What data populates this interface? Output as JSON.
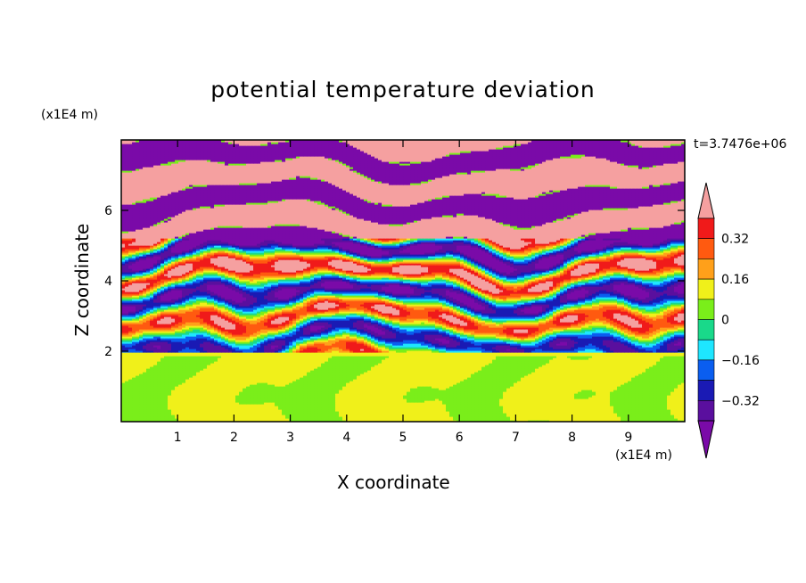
{
  "chart_data": {
    "type": "heatmap",
    "title": "potential temperature deviation",
    "xlabel": "X coordinate",
    "ylabel": "Z coordinate",
    "x_unit": "(x1E4 m)",
    "y_unit": "(x1E4 m)",
    "time_label": "t=3.7476e+06",
    "x_ticks": [
      "1",
      "2",
      "3",
      "4",
      "5",
      "6",
      "7",
      "8",
      "9"
    ],
    "y_ticks": [
      "2",
      "4",
      "6"
    ],
    "xlim": [
      0,
      10
    ],
    "ylim": [
      0,
      8
    ],
    "colorbar": {
      "tick_labels": [
        "0.32",
        "0.16",
        "0",
        "−0.16",
        "−0.32"
      ],
      "tick_values": [
        0.32,
        0.16,
        0,
        -0.16,
        -0.32
      ],
      "levels": [
        -0.4,
        -0.32,
        -0.24,
        -0.16,
        -0.08,
        0,
        0.08,
        0.16,
        0.24,
        0.32,
        0.4
      ],
      "colors": [
        "#7a0aa8",
        "#5a0f9e",
        "#1a1ab4",
        "#0a5ef0",
        "#1ee6ff",
        "#19d98a",
        "#7aee1a",
        "#f0f01a",
        "#ffa01a",
        "#ff5a10",
        "#f01a1a",
        "#f5a0a0"
      ],
      "extend": "both"
    },
    "description_regions": {
      "lower_layer_z_range": [
        0,
        2
      ],
      "lower_layer_values": [
        0,
        0.08
      ],
      "upper_layer_z_range": [
        2,
        8
      ],
      "upper_layer_values": [
        -0.4,
        0.4
      ]
    }
  }
}
